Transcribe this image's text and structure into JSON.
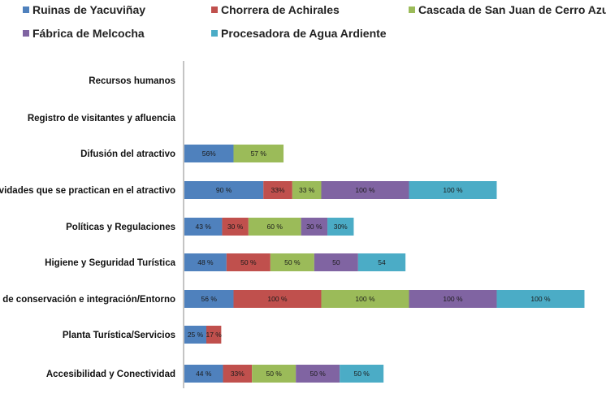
{
  "chart_data": {
    "type": "bar",
    "orientation": "horizontal",
    "stacked": true,
    "legend_position": "top",
    "grid": false,
    "categories": [
      "Recursos humanos",
      "Registro de visitantes y afluencia",
      "Difusión del atractivo",
      "Actividades que se practican en el atractivo",
      "Políticas y Regulaciones",
      "Higiene y Seguridad Turística",
      "Estado de conservación e integración/Entorno",
      "Planta Turística/Servicios",
      "Accesibilidad y Conectividad"
    ],
    "series": [
      {
        "name": "Ruinas de Yacuviñay",
        "color": "#4f81bd",
        "values": [
          0,
          0,
          56,
          90,
          43,
          48,
          56,
          25,
          44
        ],
        "labels": [
          "",
          "",
          "56%",
          "90 %",
          "43 %",
          "48 %",
          "56 %",
          "25 %",
          "44 %"
        ]
      },
      {
        "name": "Chorrera de Achirales",
        "color": "#c0504d",
        "values": [
          0,
          0,
          0,
          33,
          30,
          50,
          100,
          17,
          33
        ],
        "labels": [
          "",
          "",
          "",
          "33%",
          "30 %",
          "50 %",
          "100 %",
          "17 %",
          "33%"
        ]
      },
      {
        "name": "Cascada de San Juan de Cerro Azul",
        "color": "#9bbb59",
        "values": [
          0,
          0,
          57,
          33,
          60,
          50,
          100,
          0,
          50
        ],
        "labels": [
          "",
          "",
          "57 %",
          "33 %",
          "60 %",
          "50 %",
          "100 %",
          "",
          "50 %"
        ]
      },
      {
        "name": "Fábrica de Melcocha",
        "color": "#8064a2",
        "values": [
          0,
          0,
          0,
          100,
          30,
          50,
          100,
          0,
          50
        ],
        "labels": [
          "",
          "",
          "",
          "100 %",
          "30 %",
          "50",
          "100 %",
          "",
          "50 %"
        ]
      },
      {
        "name": "Procesadora de Agua Ardiente",
        "color": "#4bacc6",
        "values": [
          0,
          0,
          0,
          100,
          30,
          54,
          100,
          0,
          50
        ],
        "labels": [
          "",
          "",
          "",
          "100 %",
          "30%",
          "54",
          "100 %",
          "",
          "50 %"
        ]
      }
    ]
  }
}
